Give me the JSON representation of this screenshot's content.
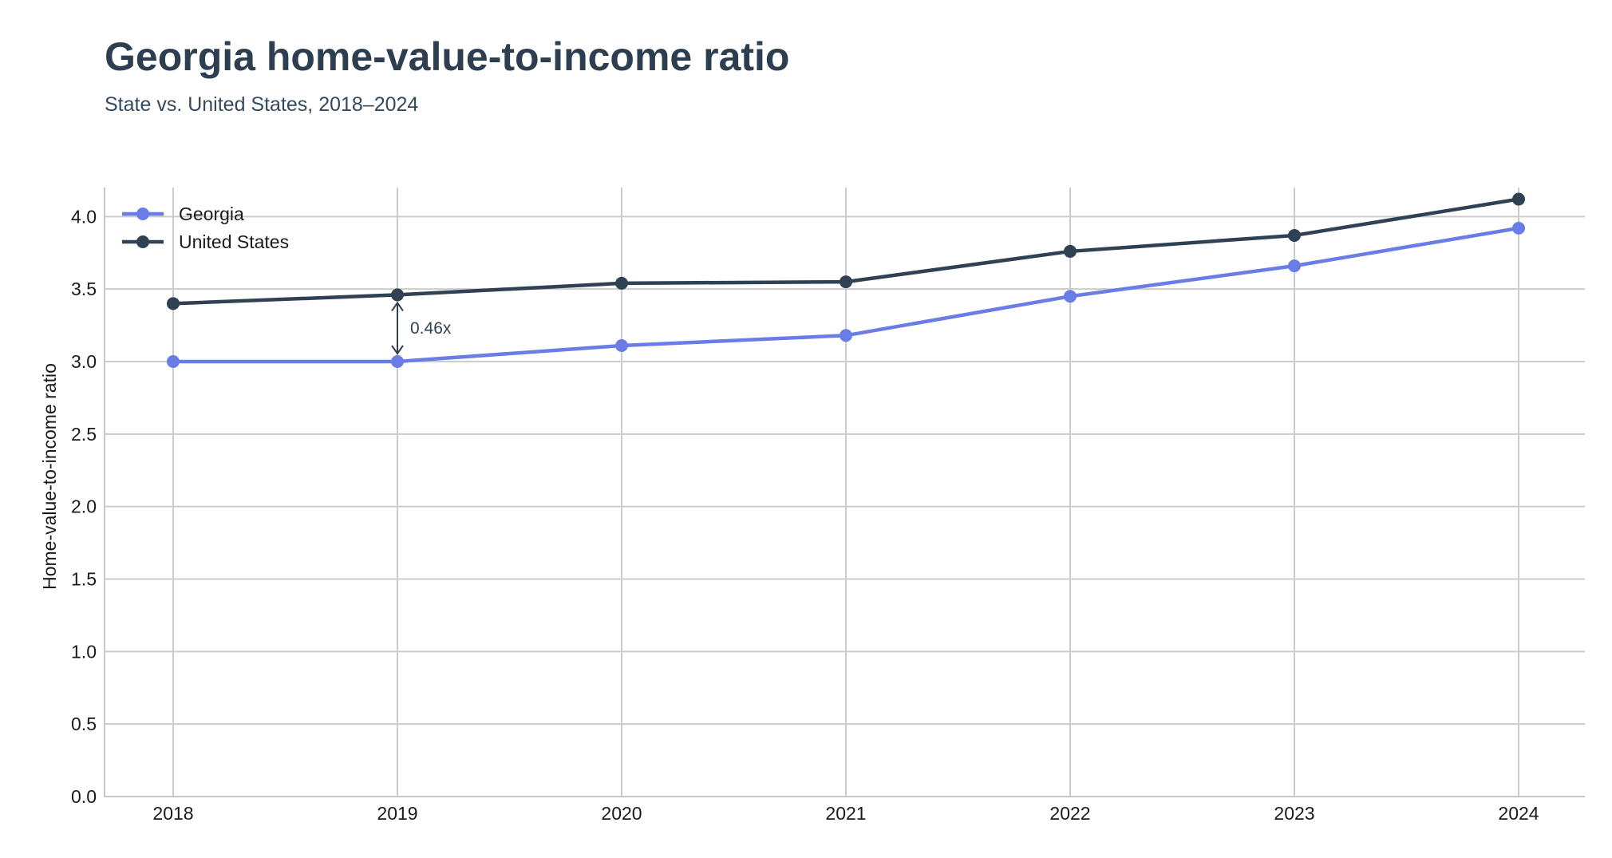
{
  "chart_data": {
    "type": "line",
    "title": "Georgia home-value-to-income ratio",
    "subtitle": "State vs. United States, 2018–2024",
    "xlabel": "",
    "ylabel": "Home-value-to-income ratio",
    "categories": [
      "2018",
      "2019",
      "2020",
      "2021",
      "2022",
      "2023",
      "2024"
    ],
    "ylim": [
      0,
      4.2
    ],
    "yticks": [
      "0.0",
      "0.5",
      "1.0",
      "1.5",
      "2.0",
      "2.5",
      "3.0",
      "3.5",
      "4.0"
    ],
    "grid": true,
    "legend_position": "top-left",
    "series": [
      {
        "name": "Georgia",
        "color": "#6a7de6",
        "values": [
          3.0,
          3.0,
          3.11,
          3.18,
          3.45,
          3.66,
          3.92
        ]
      },
      {
        "name": "United States",
        "color": "#2f4152",
        "values": [
          3.4,
          3.46,
          3.54,
          3.55,
          3.76,
          3.87,
          4.12
        ]
      }
    ],
    "annotations": [
      {
        "text": "0.46x",
        "category": "2019",
        "from_series": "Georgia",
        "to_series": "United States"
      }
    ]
  }
}
